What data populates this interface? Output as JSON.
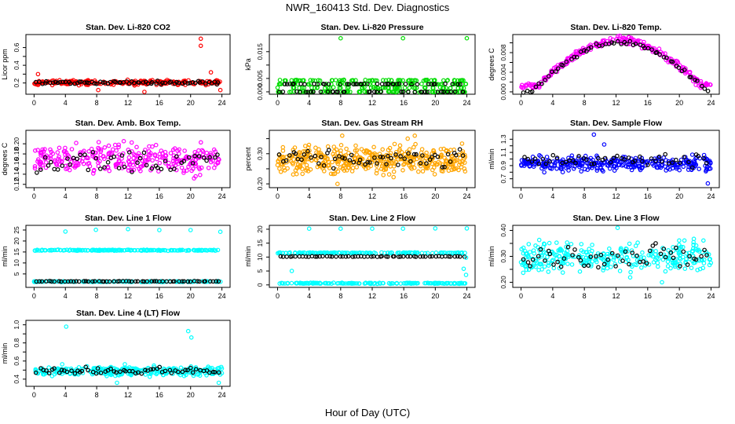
{
  "page": {
    "title": "NWR_160413  Std. Dev. Diagnostics",
    "xlabel": "Hour of Day (UTC)"
  },
  "colors": {
    "red": "#ff0000",
    "green": "#00dd00",
    "magenta": "#ff00ff",
    "orange": "#ffa500",
    "blue": "#0000ff",
    "cyan": "#00ffff",
    "black": "#000000"
  },
  "chart_data": [
    {
      "type": "scatter",
      "title": "Stan. Dev. Li-820 CO2",
      "ylabel": "Licor ppm",
      "xlim": [
        0,
        24
      ],
      "ylim": [
        0.1,
        0.72
      ],
      "xticks": [
        0,
        4,
        8,
        12,
        16,
        20,
        24
      ],
      "yticks": [
        0.2,
        0.3,
        0.4,
        0.5,
        0.6
      ],
      "ytick_labels": [
        "0.2",
        "",
        "0.4",
        "",
        "0.6"
      ],
      "color": "red",
      "band": [
        0.17,
        0.24
      ],
      "black_band": [
        0.18,
        0.23
      ],
      "n_color": 240,
      "n_black": 70,
      "outliers": [
        [
          21.3,
          0.7
        ],
        [
          21.3,
          0.62
        ],
        [
          8.2,
          0.12
        ],
        [
          22.6,
          0.32
        ],
        [
          0.5,
          0.3
        ],
        [
          14.1,
          0.1
        ],
        [
          23.8,
          0.12
        ]
      ]
    },
    {
      "type": "scatter",
      "title": "Stan. Dev. Li-820 Pressure",
      "ylabel": "kPa",
      "xlim": [
        0,
        24
      ],
      "ylim": [
        0,
        0.0205
      ],
      "xticks": [
        0,
        4,
        8,
        12,
        16,
        20,
        24
      ],
      "yticks": [
        0,
        0.005,
        0.01,
        0.015
      ],
      "ytick_labels": [
        "0.000",
        "0.005",
        "",
        "0.015"
      ],
      "color": "green",
      "levels": [
        0,
        0.0015,
        0.0029,
        0.0043
      ],
      "levels_color_from": 0.0,
      "black_levels": [
        0,
        0.0029
      ],
      "n_color": 260,
      "n_black": 80,
      "outliers": [
        [
          8.0,
          0.02
        ],
        [
          15.9,
          0.02
        ],
        [
          24.0,
          0.02
        ],
        [
          7.9,
          0.0036
        ],
        [
          17.0,
          0.0033
        ]
      ]
    },
    {
      "type": "scatter",
      "title": "Stan. Dev. Li-820 Temp.",
      "ylabel": "degrees C",
      "xlim": [
        0,
        24
      ],
      "ylim": [
        0,
        0.0112
      ],
      "xticks": [
        0,
        4,
        8,
        12,
        16,
        20,
        24
      ],
      "yticks": [
        0,
        0.002,
        0.004,
        0.006,
        0.008,
        0.01
      ],
      "ytick_labels": [
        "0.000",
        "",
        "0.004",
        "",
        "0.008",
        ""
      ],
      "color": "magenta",
      "curve": "arch",
      "n_color": 260,
      "n_black": 60,
      "outliers": []
    },
    {
      "type": "scatter",
      "title": "Stan. Dev. Amb. Box Temp.",
      "ylabel": "degrees C",
      "xlim": [
        0,
        24
      ],
      "ylim": [
        0.118,
        0.222
      ],
      "xticks": [
        0,
        4,
        8,
        12,
        16,
        20,
        24
      ],
      "yticks": [
        0.12,
        0.14,
        0.16,
        0.18,
        0.2
      ],
      "ytick_labels": [
        "0.12",
        "0.14",
        "0.16",
        "0.18",
        "0.20"
      ],
      "color": "magenta",
      "band": [
        0.13,
        0.21
      ],
      "black_band": [
        0.13,
        0.2
      ],
      "n_color": 300,
      "n_black": 50,
      "outliers": []
    },
    {
      "type": "scatter",
      "title": "Stan. Dev. Gas Stream RH",
      "ylabel": "percent",
      "xlim": [
        0,
        24
      ],
      "ylim": [
        0.195,
        0.37
      ],
      "xticks": [
        0,
        4,
        8,
        12,
        16,
        20,
        24
      ],
      "yticks": [
        0.2,
        0.25,
        0.3,
        0.35
      ],
      "ytick_labels": [
        "0.20",
        "",
        "0.30",
        ""
      ],
      "color": "orange",
      "band": [
        0.22,
        0.34
      ],
      "black_band": [
        0.24,
        0.32
      ],
      "n_color": 420,
      "n_black": 60,
      "outliers": [
        [
          8.2,
          0.36
        ],
        [
          16.5,
          0.35
        ],
        [
          7.6,
          0.2
        ],
        [
          17.4,
          0.36
        ]
      ]
    },
    {
      "type": "scatter",
      "title": "Stan. Dev. Sample Flow",
      "ylabel": "ml/min",
      "xlim": [
        0,
        24
      ],
      "ylim": [
        0.6,
        1.4
      ],
      "xticks": [
        0,
        4,
        8,
        12,
        16,
        20,
        24
      ],
      "yticks": [
        0.7,
        0.8,
        0.9,
        1.0,
        1.1,
        1.2,
        1.3
      ],
      "ytick_labels": [
        "0.7",
        "",
        "0.9",
        "",
        "1.1",
        "",
        "1.3"
      ],
      "color": "blue",
      "band": [
        0.78,
        1.08
      ],
      "black_band": [
        0.85,
        1.12
      ],
      "n_color": 320,
      "n_black": 50,
      "outliers": [
        [
          9.2,
          1.37
        ],
        [
          23.6,
          0.63
        ],
        [
          10.5,
          1.22
        ]
      ]
    },
    {
      "type": "scatter",
      "title": "Stan. Dev. Line 1 Flow",
      "ylabel": "ml/min",
      "xlim": [
        0,
        24
      ],
      "ylim": [
        0,
        26
      ],
      "xticks": [
        0,
        4,
        8,
        12,
        16,
        20,
        24
      ],
      "yticks": [
        5,
        10,
        15,
        20,
        25
      ],
      "ytick_labels": [
        "5",
        "10",
        "15",
        "20",
        "25"
      ],
      "color": "cyan",
      "levels": [
        15.8,
        1.5
      ],
      "black_levels": [
        1.6
      ],
      "n_color": 320,
      "n_black": 60,
      "outliers": [
        [
          4.0,
          24.3
        ],
        [
          7.9,
          25.1
        ],
        [
          12.0,
          25.4
        ],
        [
          16.0,
          25.0
        ],
        [
          20.0,
          25.0
        ],
        [
          23.8,
          24.2
        ]
      ]
    },
    {
      "type": "scatter",
      "title": "Stan. Dev. Line 2 Flow",
      "ylabel": "ml/min",
      "xlim": [
        0,
        24
      ],
      "ylim": [
        0,
        20.5
      ],
      "xticks": [
        0,
        4,
        8,
        12,
        16,
        20,
        24
      ],
      "yticks": [
        0,
        5,
        10,
        15,
        20
      ],
      "ytick_labels": [
        "0",
        "5",
        "10",
        "15",
        "20"
      ],
      "color": "cyan",
      "levels": [
        11.5,
        0.6
      ],
      "black_levels": [
        10.2
      ],
      "n_color": 320,
      "n_black": 60,
      "outliers": [
        [
          4.0,
          20.2
        ],
        [
          8.0,
          20.2
        ],
        [
          12.0,
          20.2
        ],
        [
          15.9,
          20.2
        ],
        [
          20.0,
          20.3
        ],
        [
          24.0,
          20.3
        ],
        [
          1.8,
          5.0
        ],
        [
          23.9,
          3.6
        ],
        [
          23.9,
          9.8
        ],
        [
          23.6,
          5.8
        ]
      ]
    },
    {
      "type": "scatter",
      "title": "Stan. Dev. Line 3 Flow",
      "ylabel": "ml/min",
      "xlim": [
        0,
        24
      ],
      "ylim": [
        0.19,
        0.41
      ],
      "xticks": [
        0,
        4,
        8,
        12,
        16,
        20,
        24
      ],
      "yticks": [
        0.2,
        0.25,
        0.3,
        0.35,
        0.4
      ],
      "ytick_labels": [
        "0.20",
        "",
        "0.30",
        "",
        "0.40"
      ],
      "color": "cyan",
      "band": [
        0.22,
        0.37
      ],
      "black_band": [
        0.23,
        0.37
      ],
      "n_color": 320,
      "n_black": 55,
      "outliers": [
        [
          12.2,
          0.41
        ],
        [
          17.8,
          0.2
        ]
      ]
    },
    {
      "type": "scatter",
      "title": "Stan. Dev. Line 4 (LT) Flow",
      "ylabel": "ml/min",
      "xlim": [
        0,
        24
      ],
      "ylim": [
        0.35,
        1.02
      ],
      "xticks": [
        0,
        4,
        8,
        12,
        16,
        20,
        24
      ],
      "yticks": [
        0.4,
        0.5,
        0.6,
        0.7,
        0.8,
        0.9,
        1.0
      ],
      "ytick_labels": [
        "0.4",
        "",
        "0.6",
        "",
        "0.8",
        "",
        "1.0"
      ],
      "color": "cyan",
      "band": [
        0.42,
        0.56
      ],
      "black_band": [
        0.44,
        0.55
      ],
      "n_color": 320,
      "n_black": 60,
      "outliers": [
        [
          4.1,
          0.98
        ],
        [
          20.1,
          0.86
        ],
        [
          19.7,
          0.93
        ],
        [
          10.6,
          0.36
        ],
        [
          23.6,
          0.36
        ]
      ]
    }
  ]
}
